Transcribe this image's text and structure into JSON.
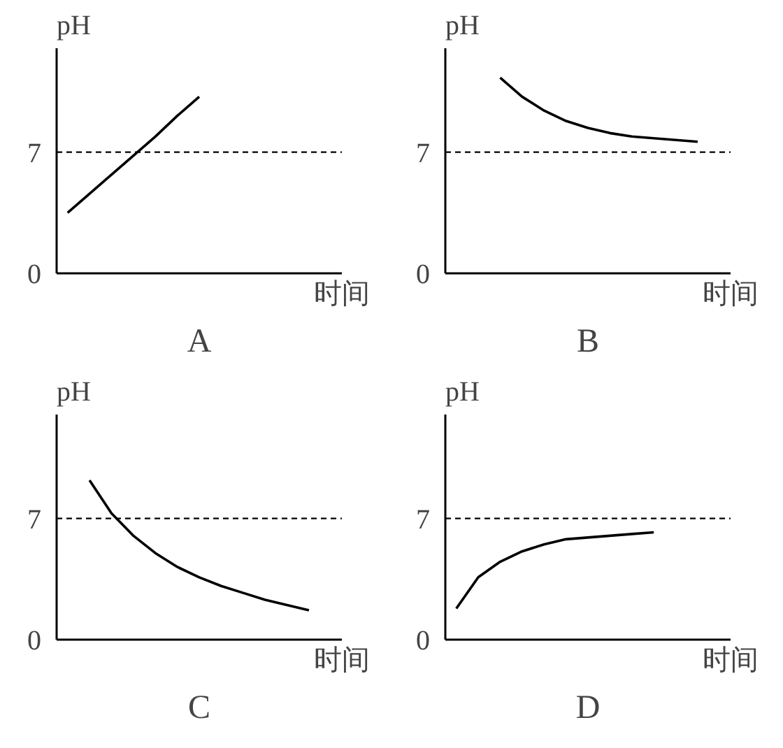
{
  "chart_data": [
    {
      "type": "line",
      "title": "A",
      "xlabel": "时间",
      "ylabel": "pH",
      "categories": [
        null,
        null,
        null,
        null,
        null,
        null,
        null,
        null,
        null,
        null,
        null,
        null,
        null
      ],
      "color": "#000000",
      "values": [
        3.5,
        4.6,
        5.7,
        6.8,
        7.9,
        9.1,
        10.2,
        null,
        null,
        null,
        null,
        null,
        null
      ],
      "ylim": [
        0,
        13
      ],
      "yticks": [
        0,
        7
      ],
      "tick_labels": "y",
      "ref_lines": [
        {
          "axis": "y",
          "value": 7,
          "line_style": "dashed"
        }
      ]
    },
    {
      "type": "line",
      "title": "B",
      "xlabel": "时间",
      "ylabel": "pH",
      "categories": [
        null,
        null,
        null,
        null,
        null,
        null,
        null,
        null,
        null,
        null,
        null,
        null,
        null
      ],
      "color": "#000000",
      "values": [
        null,
        null,
        11.3,
        10.2,
        9.4,
        8.8,
        8.4,
        8.1,
        7.9,
        7.8,
        7.7,
        7.6,
        null
      ],
      "ylim": [
        0,
        13
      ],
      "yticks": [
        0,
        7
      ],
      "tick_labels": "y",
      "ref_lines": [
        {
          "axis": "y",
          "value": 7,
          "line_style": "dashed"
        }
      ]
    },
    {
      "type": "line",
      "title": "C",
      "xlabel": "时间",
      "ylabel": "pH",
      "categories": [
        null,
        null,
        null,
        null,
        null,
        null,
        null,
        null,
        null,
        null,
        null,
        null,
        null
      ],
      "color": "#000000",
      "values": [
        null,
        9.2,
        7.3,
        6.0,
        5.0,
        4.2,
        3.6,
        3.1,
        2.7,
        2.3,
        2.0,
        1.7,
        null
      ],
      "ylim": [
        0,
        13
      ],
      "yticks": [
        0,
        7
      ],
      "tick_labels": "y",
      "ref_lines": [
        {
          "axis": "y",
          "value": 7,
          "line_style": "dashed"
        }
      ]
    },
    {
      "type": "line",
      "title": "D",
      "xlabel": "时间",
      "ylabel": "pH",
      "categories": [
        null,
        null,
        null,
        null,
        null,
        null,
        null,
        null,
        null,
        null,
        null,
        null,
        null
      ],
      "color": "#000000",
      "values": [
        1.8,
        3.6,
        4.5,
        5.1,
        5.5,
        5.8,
        5.9,
        6.0,
        6.1,
        6.2,
        null,
        null,
        null
      ],
      "ylim": [
        0,
        13
      ],
      "yticks": [
        0,
        7
      ],
      "tick_labels": "y",
      "ref_lines": [
        {
          "axis": "y",
          "value": 7,
          "line_style": "dashed"
        }
      ]
    }
  ]
}
